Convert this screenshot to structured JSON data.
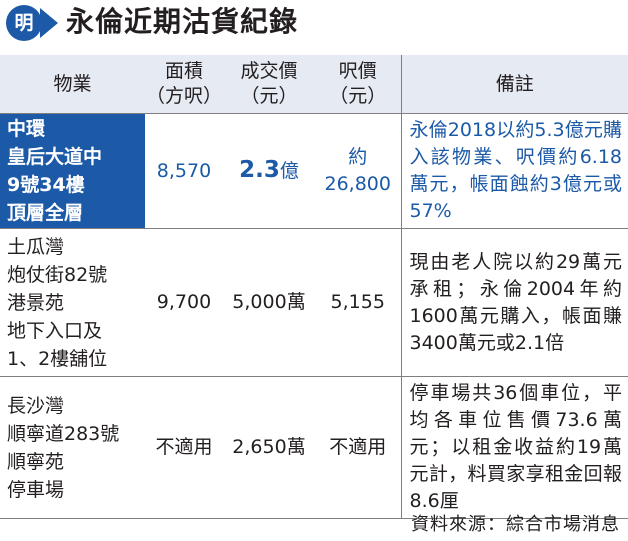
{
  "header": {
    "logo_char": "明",
    "title": "永倫近期沽貨紀錄"
  },
  "table": {
    "columns": [
      {
        "line1": "物業",
        "line2": ""
      },
      {
        "line1": "面積",
        "line2": "（方呎）"
      },
      {
        "line1": "成交價",
        "line2": "（元）"
      },
      {
        "line1": "呎價",
        "line2": "（元）"
      },
      {
        "line1": "備註",
        "line2": ""
      }
    ],
    "rows": [
      {
        "highlight": true,
        "property_lines": [
          "中環",
          "皇后大道中",
          "9號34樓",
          "頂層全層"
        ],
        "area": "8,570",
        "price_value": "2.3",
        "price_unit": "億",
        "psf_line1": "約",
        "psf_line2": "26,800",
        "remark": "永倫2018以約5.3億元購入該物業、呎價約6.18萬元，帳面蝕約3億元或57%"
      },
      {
        "highlight": false,
        "property_lines": [
          "土瓜灣",
          "炮仗街82號",
          "港景苑",
          "地下入口及",
          "1、2樓舖位"
        ],
        "area": "9,700",
        "price": "5,000萬",
        "psf": "5,155",
        "remark": "現由老人院以約29萬元承租；永倫2004年約1600萬元購入，帳面賺3400萬元或2.1倍"
      },
      {
        "highlight": false,
        "property_lines": [
          "長沙灣",
          "順寧道283號",
          "順寧苑",
          "停車場"
        ],
        "area": "不適用",
        "price": "2,650萬",
        "psf": "不適用",
        "remark": "停車場共36個車位，平均各車位售價73.6萬元；以租金收益約19萬元計，料買家享租金回報8.6厘"
      }
    ]
  },
  "footer": {
    "source": "資料來源：綜合市場消息"
  },
  "colors": {
    "accent": "#1c5aa8",
    "header_bg": "#e6eaf3",
    "text": "#231f20"
  }
}
